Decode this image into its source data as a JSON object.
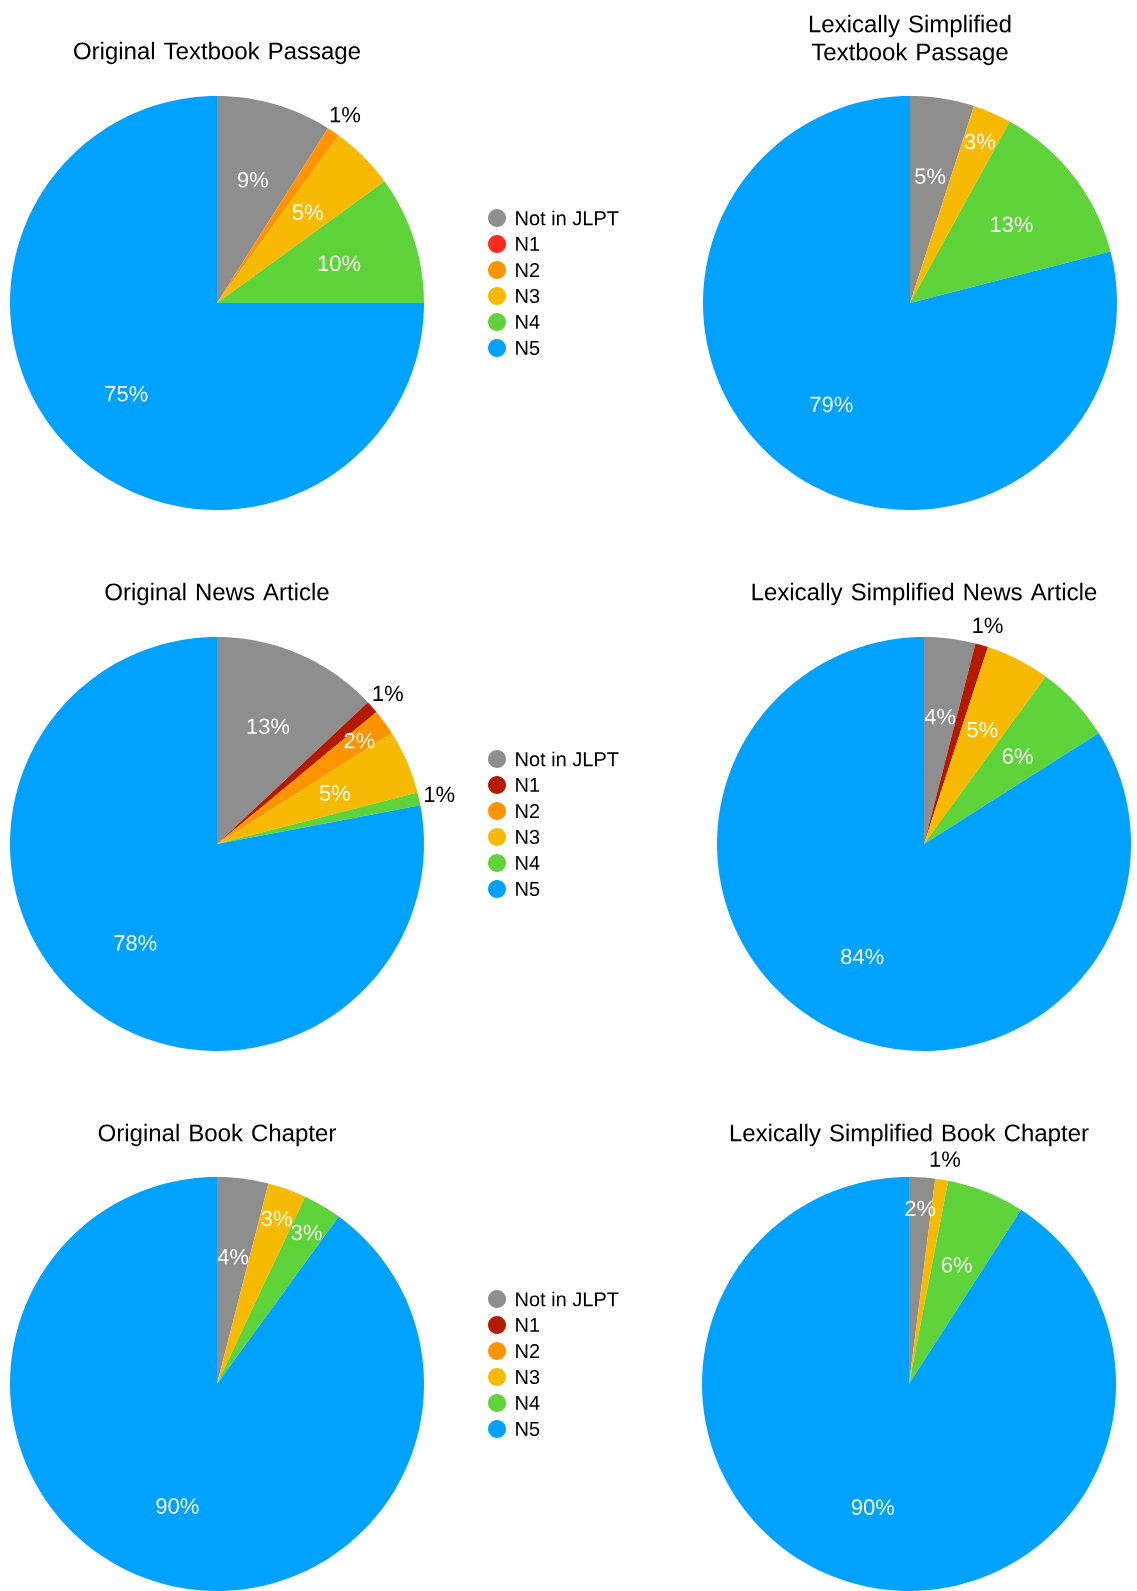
{
  "chart_data": [
    {
      "type": "pie",
      "title": "Original Textbook Passage",
      "categories": [
        "Not in JLPT",
        "N1",
        "N2",
        "N3",
        "N4",
        "N5"
      ],
      "values": [
        9,
        0,
        1,
        5,
        10,
        75
      ],
      "colors": [
        "#8e8e8e",
        "#ff2a1a",
        "#ff9300",
        "#f8ba00",
        "#5fd33a",
        "#00a2ff"
      ],
      "value_labels": [
        "9%",
        null,
        "1%",
        "5%",
        "10%",
        "75%"
      ],
      "legend": "right"
    },
    {
      "type": "pie",
      "title": "Lexically Simplified Textbook Passage",
      "categories": [
        null,
        null,
        null,
        null,
        null,
        null
      ],
      "values": [
        5,
        0,
        0,
        3,
        13,
        79
      ],
      "colors": [
        "#8e8e8e",
        "#ff2a1a",
        "#ff9300",
        "#f8ba00",
        "#5fd33a",
        "#00a2ff"
      ],
      "value_labels": [
        "5%",
        null,
        null,
        "3%",
        "13%",
        "79%"
      ]
    },
    {
      "type": "pie",
      "title": "Original News Article",
      "categories": [
        "Not in JLPT",
        "N1",
        "N2",
        "N3",
        "N4",
        "N5"
      ],
      "values": [
        13,
        1,
        2,
        5,
        1,
        78
      ],
      "colors": [
        "#8e8e8e",
        "#b51a00",
        "#ff9300",
        "#f8ba00",
        "#5fd33a",
        "#00a2ff"
      ],
      "value_labels": [
        "13%",
        "1%",
        "2%",
        "5%",
        "1%",
        "78%"
      ],
      "legend": "right"
    },
    {
      "type": "pie",
      "title": "Lexically Simplified News Article",
      "categories": [
        null,
        null,
        null,
        null,
        null,
        null
      ],
      "values": [
        4,
        1,
        0,
        5,
        6,
        84
      ],
      "colors": [
        "#8e8e8e",
        "#b51a00",
        "#ff9300",
        "#f8ba00",
        "#5fd33a",
        "#00a2ff"
      ],
      "value_labels": [
        "4%",
        "1%",
        null,
        "5%",
        "6%",
        "84%"
      ]
    },
    {
      "type": "pie",
      "title": "Original Book Chapter",
      "categories": [
        "Not in JLPT",
        "N1",
        "N2",
        "N3",
        "N4",
        "N5"
      ],
      "values": [
        4,
        0,
        0,
        3,
        3,
        90
      ],
      "colors": [
        "#8e8e8e",
        "#b51a00",
        "#ff9300",
        "#f8ba00",
        "#5fd33a",
        "#00a2ff"
      ],
      "value_labels": [
        "4%",
        null,
        null,
        "3%",
        "3%",
        "90%"
      ],
      "legend": "right"
    },
    {
      "type": "pie",
      "title": "Lexically Simplified Book Chapter",
      "categories": [
        null,
        null,
        null,
        null,
        null,
        null
      ],
      "values": [
        2,
        0,
        0,
        1,
        6,
        90
      ],
      "colors": [
        "#8e8e8e",
        "#b51a00",
        "#ff9300",
        "#f8ba00",
        "#5fd33a",
        "#00a2ff"
      ],
      "value_labels": [
        "2%",
        null,
        null,
        "1%",
        "6%",
        "90%"
      ]
    }
  ]
}
